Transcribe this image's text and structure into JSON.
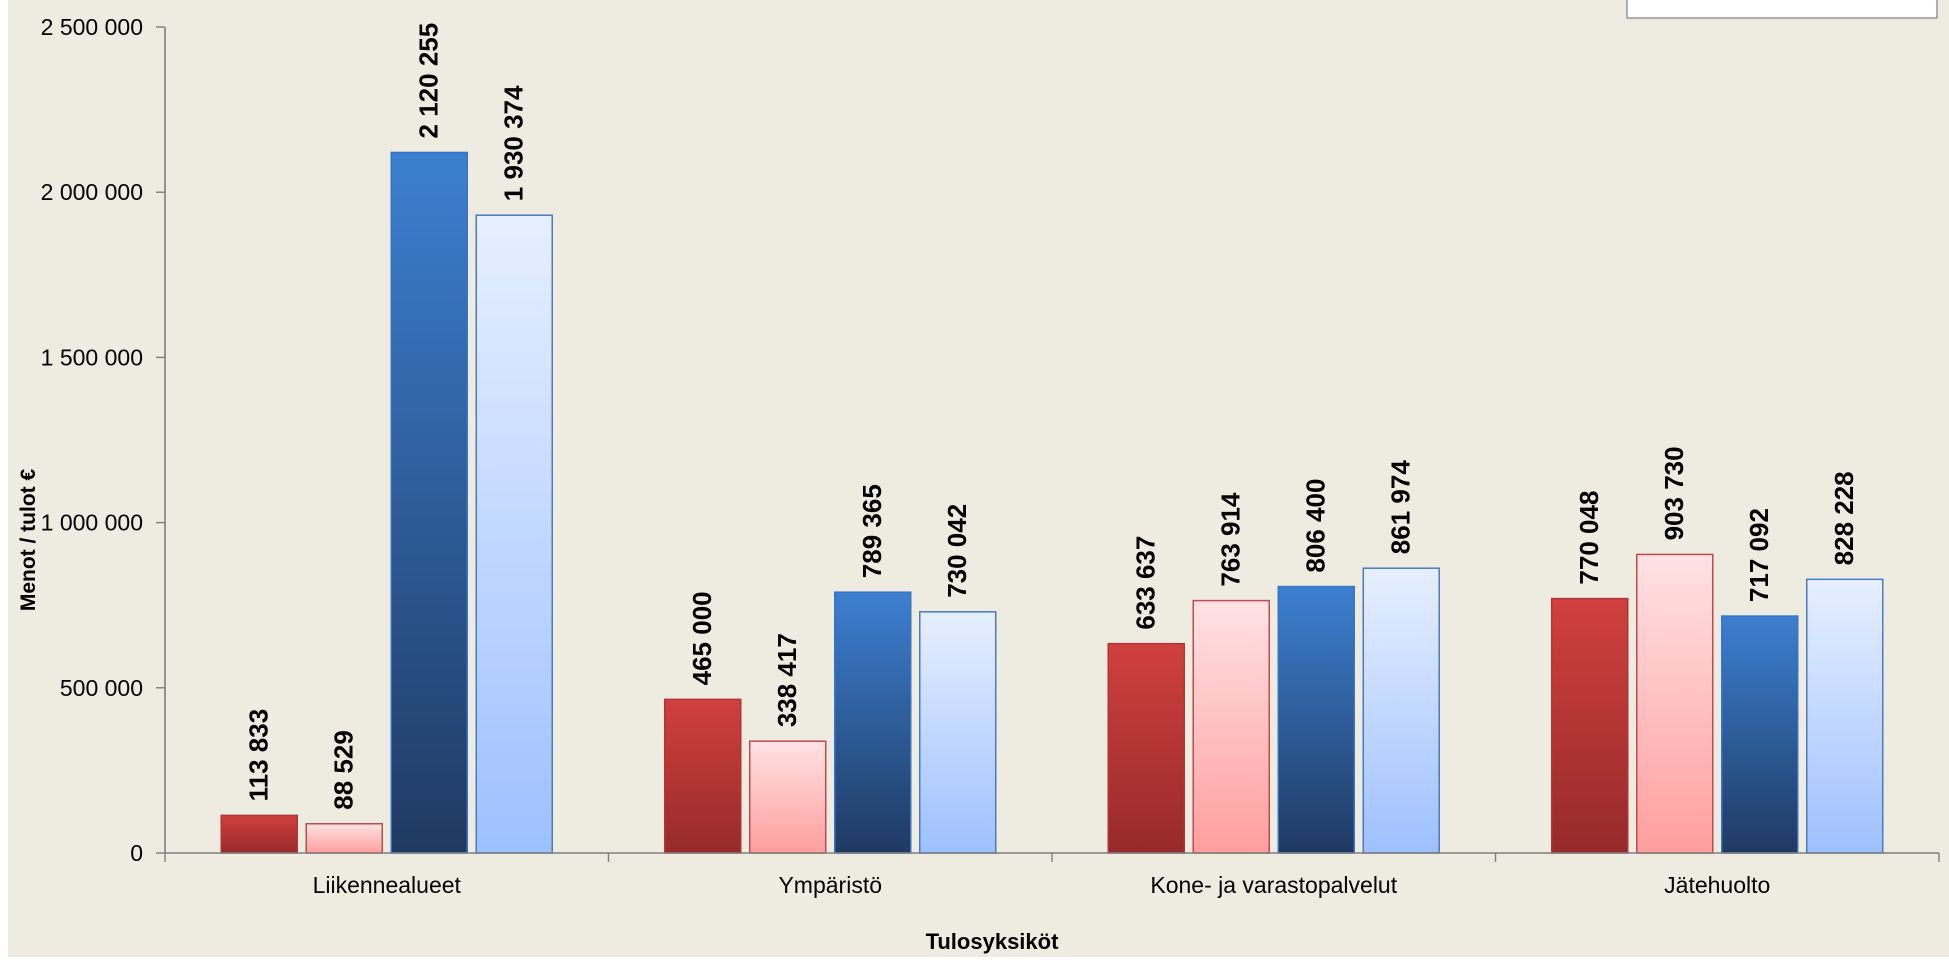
{
  "chart_data": {
    "type": "bar",
    "title": "",
    "xlabel": "Tulosyksiköt",
    "ylabel": "Menot / tulot €",
    "ylim": [
      0,
      2500000
    ],
    "y_ticks": [
      0,
      500000,
      1000000,
      1500000,
      2000000,
      2500000
    ],
    "y_tick_labels": [
      "0",
      "500 000",
      "1 000 000",
      "1 500 000",
      "2 000 000",
      "2 500 000"
    ],
    "grid": false,
    "legend_position": "top-right",
    "categories": [
      "Liikennealueet",
      "Ympäristö",
      "Kone- ja varastopalvelut",
      "Jätehuolto"
    ],
    "series": [
      {
        "values": [
          113833,
          465000,
          633637,
          770048
        ],
        "value_labels": [
          "113 833",
          "465 000",
          "633 637",
          "770 048"
        ]
      },
      {
        "values": [
          88529,
          338417,
          763914,
          903730
        ],
        "value_labels": [
          "88 529",
          "338 417",
          "763 914",
          "903 730"
        ]
      },
      {
        "values": [
          2120255,
          789365,
          806400,
          717092
        ],
        "value_labels": [
          "2 120 255",
          "789 365",
          "806 400",
          "717 092"
        ]
      },
      {
        "values": [
          1930374,
          730042,
          861974,
          828228
        ],
        "value_labels": [
          "1 930 374",
          "730 042",
          "861 974",
          "828 228"
        ]
      }
    ],
    "colors": {
      "background": "#eeebe0",
      "axis": "#7f7f7f",
      "series_top": [
        "#d0403e",
        "#ffe2e4",
        "#3c7fd0",
        "#e6efff"
      ],
      "series_bottom": [
        "#962a2a",
        "#ff9e9e",
        "#1f3a62",
        "#9ec0ff"
      ],
      "series_stroke": [
        "#b23434",
        "#c24a4f",
        "#3a74c4",
        "#4a7cc0"
      ]
    }
  }
}
